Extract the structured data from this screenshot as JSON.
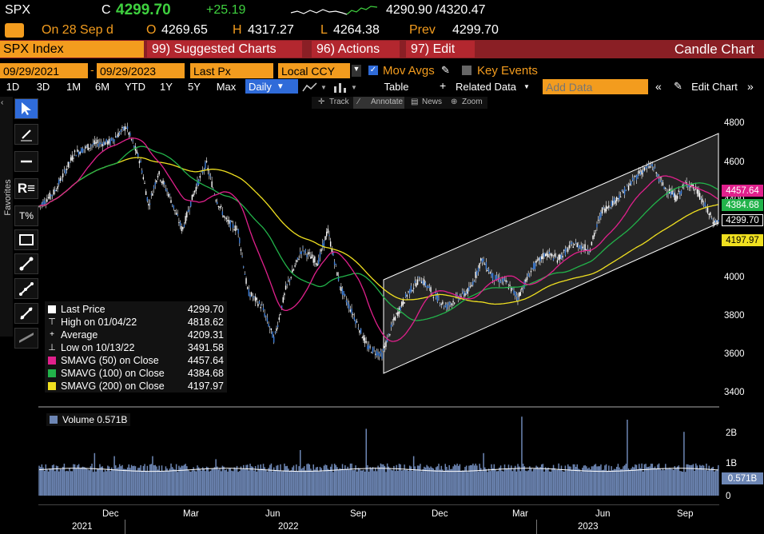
{
  "ticker": {
    "symbol": "SPX",
    "c_label": "C",
    "last": "4299.70",
    "change": "+25.19",
    "bid_ask": "4290.90 /4320.47"
  },
  "quote": {
    "on_label": "On 28 Sep d",
    "o_label": "O",
    "o_value": "4269.65",
    "h_label": "H",
    "h_value": "4317.27",
    "l_label": "L",
    "l_value": "4264.38",
    "prev_label": "Prev",
    "prev_value": "4299.70"
  },
  "menu": {
    "security": "SPX Index",
    "suggested": "99) Suggested Charts",
    "actions": "96) Actions",
    "edit": "97) Edit",
    "title": "Candle Chart"
  },
  "controls": {
    "start_date": "09/29/2021",
    "end_date": "09/29/2023",
    "price_field": "Last Px",
    "currency": "Local CCY",
    "mov_avgs": "Mov Avgs",
    "key_events": "Key Events"
  },
  "periods": [
    "1D",
    "3D",
    "1M",
    "6M",
    "YTD",
    "1Y",
    "5Y",
    "Max"
  ],
  "frequency": "Daily",
  "toolbar2": {
    "table": "Table",
    "related": "Related Data",
    "add_data_placeholder": "Add Data",
    "edit_chart": "Edit Chart"
  },
  "subtools": {
    "track": "Track",
    "annotate": "Annotate",
    "news": "News",
    "zoom": "Zoom"
  },
  "favorites": "Favorites",
  "legend": {
    "last_price": {
      "label": "Last Price",
      "value": "4299.70",
      "color": "#ffffff"
    },
    "high": {
      "label": "High on 01/04/22",
      "value": "4818.62"
    },
    "average": {
      "label": "Average",
      "value": "4209.31"
    },
    "low": {
      "label": "Low on 10/13/22",
      "value": "3491.58"
    },
    "sma50": {
      "label": "SMAVG (50)  on Close",
      "value": "4457.64",
      "color": "#e0208c"
    },
    "sma100": {
      "label": "SMAVG (100)  on Close",
      "value": "4384.68",
      "color": "#22b34a"
    },
    "sma200": {
      "label": "SMAVG (200)  on Close",
      "value": "4197.97",
      "color": "#f0e020"
    }
  },
  "volume": {
    "label": "Volume 0.571B",
    "tag": "0.571B",
    "axis": [
      "2B",
      "1B",
      "0"
    ],
    "color": "#6d86b4"
  },
  "price_axis": [
    "4800",
    "4600",
    "4400",
    "4200",
    "4000",
    "3800",
    "3600",
    "3400"
  ],
  "price_tags": {
    "sma50": "4457.64",
    "sma100": "4384.68",
    "last": "4299.70",
    "sma200": "4197.97"
  },
  "x_axis": {
    "months": [
      "Dec",
      "Mar",
      "Jun",
      "Sep",
      "Dec",
      "Mar",
      "Jun",
      "Sep"
    ],
    "years": [
      "2021",
      "2022",
      "2023"
    ]
  },
  "colors": {
    "accent_orange": "#f39c1e",
    "up_green": "#3fd13f",
    "menu_red": "#8a1f25",
    "selected_blue": "#2f6bd9",
    "channel": "#ffffff"
  }
}
